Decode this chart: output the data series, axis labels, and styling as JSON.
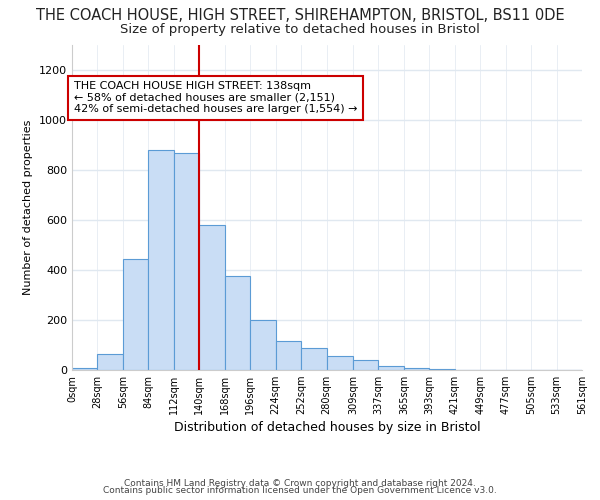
{
  "title": "THE COACH HOUSE, HIGH STREET, SHIREHAMPTON, BRISTOL, BS11 0DE",
  "subtitle": "Size of property relative to detached houses in Bristol",
  "xlabel": "Distribution of detached houses by size in Bristol",
  "ylabel": "Number of detached properties",
  "bin_edges": [
    0,
    28,
    56,
    84,
    112,
    140,
    168,
    196,
    224,
    252,
    280,
    309,
    337,
    365,
    393,
    421,
    449,
    477,
    505,
    533,
    561
  ],
  "counts": [
    10,
    65,
    445,
    882,
    868,
    580,
    375,
    200,
    115,
    90,
    55,
    40,
    15,
    10,
    4,
    2,
    0,
    2,
    0,
    0
  ],
  "bin_labels": [
    "0sqm",
    "28sqm",
    "56sqm",
    "84sqm",
    "112sqm",
    "140sqm",
    "168sqm",
    "196sqm",
    "224sqm",
    "252sqm",
    "280sqm",
    "309sqm",
    "337sqm",
    "365sqm",
    "393sqm",
    "421sqm",
    "449sqm",
    "477sqm",
    "505sqm",
    "533sqm",
    "561sqm"
  ],
  "bar_color": "#c9ddf5",
  "bar_edge_color": "#5b9bd5",
  "vline_x": 140,
  "vline_color": "#cc0000",
  "ylim": [
    0,
    1300
  ],
  "yticks": [
    0,
    200,
    400,
    600,
    800,
    1000,
    1200
  ],
  "annotation_text": "THE COACH HOUSE HIGH STREET: 138sqm\n← 58% of detached houses are smaller (2,151)\n42% of semi-detached houses are larger (1,554) →",
  "annotation_box_color": "#ffffff",
  "annotation_box_edge": "#cc0000",
  "footer1": "Contains HM Land Registry data © Crown copyright and database right 2024.",
  "footer2": "Contains public sector information licensed under the Open Government Licence v3.0.",
  "title_fontsize": 10.5,
  "subtitle_fontsize": 9.5,
  "bg_color": "#ffffff",
  "grid_color": "#e0e8f0"
}
